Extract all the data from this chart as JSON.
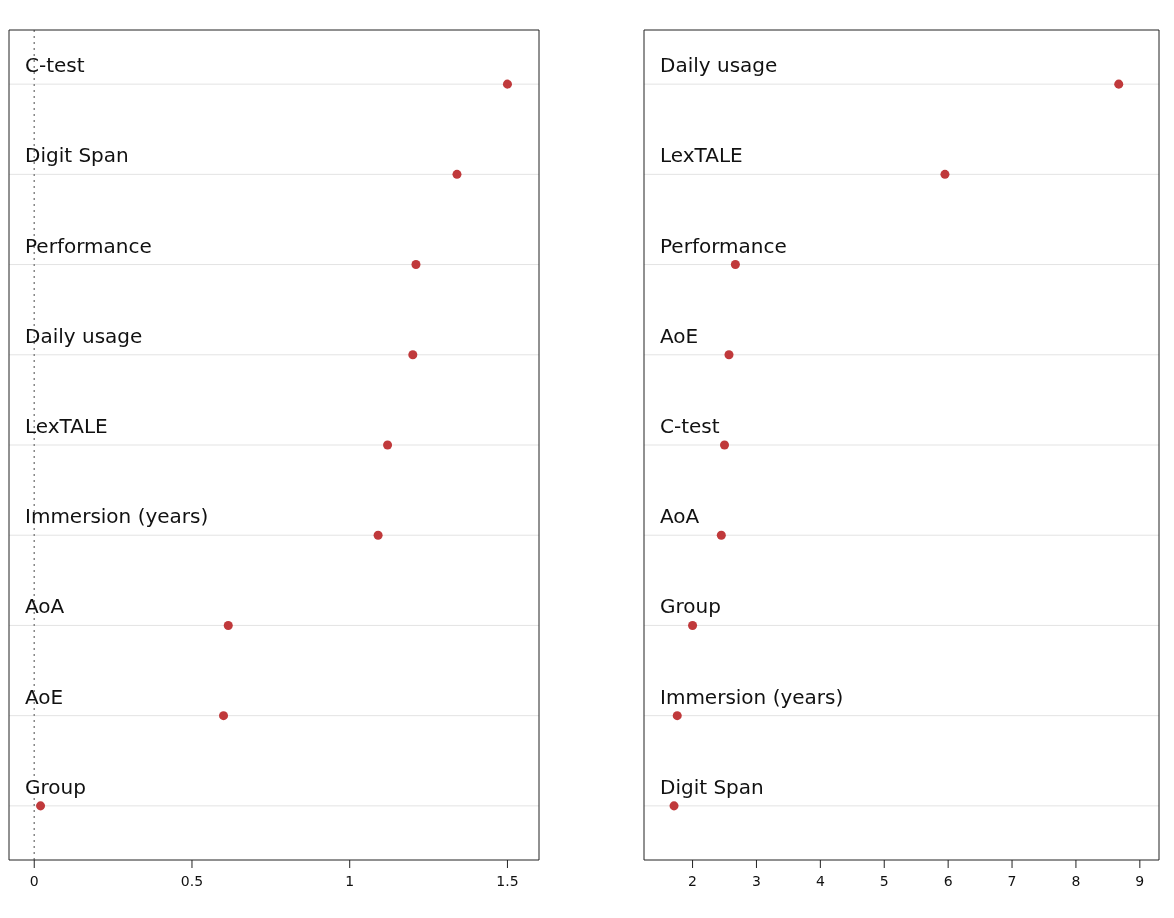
{
  "chart_data": [
    {
      "type": "scatter",
      "orientation": "horizontal",
      "categories": [
        "C-test",
        "Digit Span",
        "Performance",
        "Daily usage",
        "LexTALE",
        "Immersion (years)",
        "AoA",
        "AoE",
        "Group"
      ],
      "values": [
        1.5,
        1.34,
        1.21,
        1.2,
        1.12,
        1.09,
        0.615,
        0.6,
        0.02
      ],
      "color": "#c0393b",
      "marker": "circle",
      "xlim": [
        -0.08,
        1.6
      ],
      "xticks": [
        0,
        0.5,
        1,
        1.5
      ],
      "grid": "y",
      "ref_lines": [
        {
          "axis": "x",
          "value": 0,
          "line_style": "dotted",
          "color": "#888888"
        }
      ]
    },
    {
      "type": "scatter",
      "orientation": "horizontal",
      "categories": [
        "Daily usage",
        "LexTALE",
        "Performance",
        "AoE",
        "C-test",
        "AoA",
        "Group",
        "Immersion (years)",
        "Digit Span"
      ],
      "values": [
        8.67,
        5.95,
        2.67,
        2.57,
        2.5,
        2.45,
        2.0,
        1.76,
        1.71
      ],
      "color": "#c0393b",
      "marker": "circle",
      "xlim": [
        1.24,
        9.3
      ],
      "xticks": [
        2,
        3,
        4,
        5,
        6,
        7,
        8,
        9
      ],
      "grid": "y"
    }
  ]
}
